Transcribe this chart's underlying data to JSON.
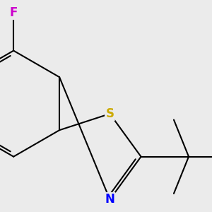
{
  "background_color": "#ebebeb",
  "bond_color": "#000000",
  "bond_width": 1.5,
  "atoms": {
    "S": {
      "color": "#ccaa00",
      "fontsize": 12,
      "fontweight": "bold"
    },
    "N": {
      "color": "#0000ff",
      "fontsize": 12,
      "fontweight": "bold"
    },
    "F": {
      "color": "#cc00cc",
      "fontsize": 12,
      "fontweight": "bold"
    }
  },
  "figsize": [
    3.0,
    3.0
  ],
  "dpi": 100
}
